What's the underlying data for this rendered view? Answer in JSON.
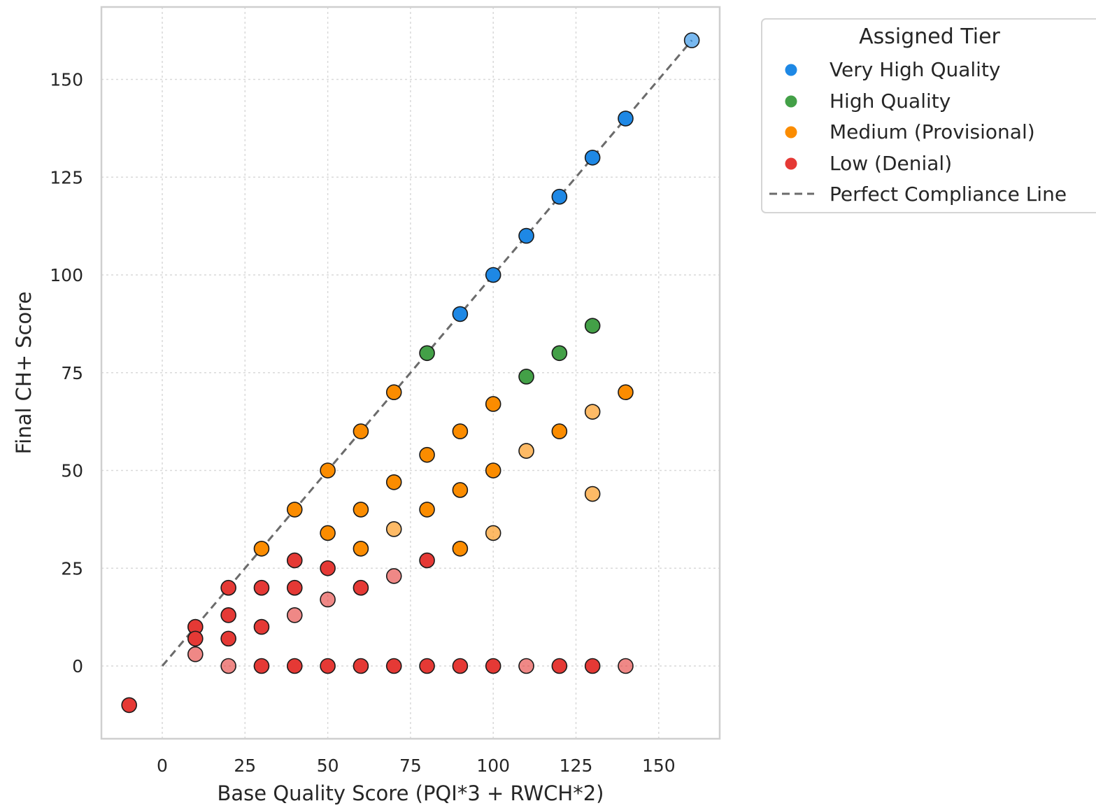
{
  "chart_data": {
    "type": "scatter",
    "xlabel": "Base Quality Score (PQI*3 + RWCH*2)",
    "ylabel": "Final CH+ Score",
    "xlim": [
      -18,
      169
    ],
    "ylim": [
      -18,
      169
    ],
    "xticks": [
      0,
      25,
      50,
      75,
      100,
      125,
      150
    ],
    "yticks": [
      0,
      25,
      50,
      75,
      100,
      125,
      150
    ],
    "grid": true,
    "legend": {
      "title": "Assigned Tier",
      "placement": "outside-top-right",
      "entries": [
        {
          "label": "Very High Quality",
          "color": "#1e88e5",
          "kind": "marker"
        },
        {
          "label": "High Quality",
          "color": "#43a047",
          "kind": "marker"
        },
        {
          "label": "Medium (Provisional)",
          "color": "#fb8c00",
          "kind": "marker"
        },
        {
          "label": "Low (Denial)",
          "color": "#e53935",
          "kind": "marker"
        },
        {
          "label": "Perfect Compliance Line",
          "color": "#6b6b6b",
          "kind": "dashed-line"
        }
      ]
    },
    "reference_line": {
      "name": "Perfect Compliance Line",
      "x": [
        0,
        160
      ],
      "y": [
        0,
        160
      ]
    },
    "series": [
      {
        "name": "Very High Quality",
        "color": "#1e88e5",
        "points": [
          {
            "x": 90,
            "y": 90
          },
          {
            "x": 100,
            "y": 100
          },
          {
            "x": 110,
            "y": 110
          },
          {
            "x": 120,
            "y": 120
          },
          {
            "x": 130,
            "y": 130
          },
          {
            "x": 140,
            "y": 140
          },
          {
            "x": 160,
            "y": 160,
            "light": true
          }
        ]
      },
      {
        "name": "High Quality",
        "color": "#43a047",
        "points": [
          {
            "x": 80,
            "y": 80
          },
          {
            "x": 110,
            "y": 74
          },
          {
            "x": 120,
            "y": 80
          },
          {
            "x": 130,
            "y": 87
          }
        ]
      },
      {
        "name": "Medium (Provisional)",
        "color": "#fb8c00",
        "points": [
          {
            "x": 30,
            "y": 30
          },
          {
            "x": 40,
            "y": 40
          },
          {
            "x": 50,
            "y": 50
          },
          {
            "x": 50,
            "y": 34
          },
          {
            "x": 60,
            "y": 60
          },
          {
            "x": 60,
            "y": 40
          },
          {
            "x": 60,
            "y": 30
          },
          {
            "x": 70,
            "y": 70
          },
          {
            "x": 70,
            "y": 47
          },
          {
            "x": 70,
            "y": 35,
            "light": true
          },
          {
            "x": 80,
            "y": 54
          },
          {
            "x": 80,
            "y": 40
          },
          {
            "x": 90,
            "y": 60
          },
          {
            "x": 90,
            "y": 45
          },
          {
            "x": 90,
            "y": 30
          },
          {
            "x": 100,
            "y": 67
          },
          {
            "x": 100,
            "y": 50
          },
          {
            "x": 100,
            "y": 34,
            "light": true
          },
          {
            "x": 110,
            "y": 55,
            "light": true
          },
          {
            "x": 120,
            "y": 60
          },
          {
            "x": 130,
            "y": 65,
            "light": true
          },
          {
            "x": 130,
            "y": 44,
            "light": true
          },
          {
            "x": 140,
            "y": 70
          }
        ]
      },
      {
        "name": "Low (Denial)",
        "color": "#e53935",
        "points": [
          {
            "x": -10,
            "y": -10
          },
          {
            "x": 10,
            "y": 10
          },
          {
            "x": 10,
            "y": 7
          },
          {
            "x": 10,
            "y": 3,
            "light": true
          },
          {
            "x": 20,
            "y": 20
          },
          {
            "x": 20,
            "y": 13
          },
          {
            "x": 20,
            "y": 7
          },
          {
            "x": 20,
            "y": 0,
            "light": true
          },
          {
            "x": 30,
            "y": 20
          },
          {
            "x": 30,
            "y": 10
          },
          {
            "x": 30,
            "y": 0
          },
          {
            "x": 40,
            "y": 27
          },
          {
            "x": 40,
            "y": 20
          },
          {
            "x": 40,
            "y": 13,
            "light": true
          },
          {
            "x": 40,
            "y": 0
          },
          {
            "x": 50,
            "y": 25
          },
          {
            "x": 50,
            "y": 17,
            "light": true
          },
          {
            "x": 50,
            "y": 0
          },
          {
            "x": 60,
            "y": 20
          },
          {
            "x": 60,
            "y": 0
          },
          {
            "x": 70,
            "y": 23,
            "light": true
          },
          {
            "x": 70,
            "y": 0
          },
          {
            "x": 80,
            "y": 27
          },
          {
            "x": 80,
            "y": 0
          },
          {
            "x": 90,
            "y": 0
          },
          {
            "x": 100,
            "y": 0
          },
          {
            "x": 110,
            "y": 0,
            "light": true
          },
          {
            "x": 120,
            "y": 0
          },
          {
            "x": 130,
            "y": 0
          },
          {
            "x": 140,
            "y": 0,
            "light": true
          }
        ]
      }
    ]
  }
}
